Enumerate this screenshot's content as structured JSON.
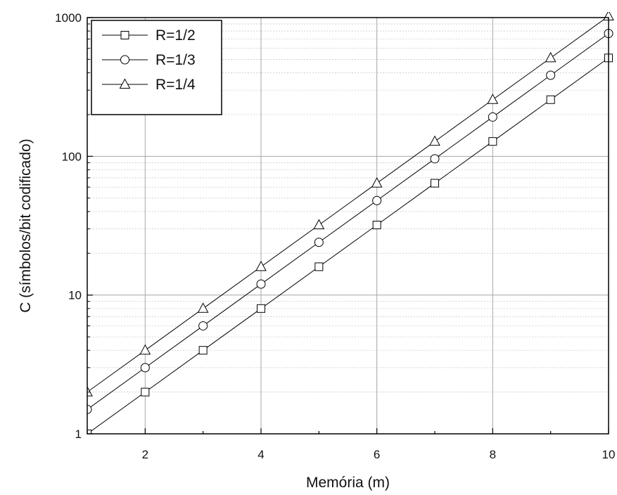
{
  "chart_data": {
    "type": "line",
    "title": "",
    "xlabel": "Memória (m)",
    "ylabel": "C (símbolos/bit codificado)",
    "xlim": [
      1,
      10
    ],
    "ylim": [
      1,
      1000
    ],
    "yscale": "log",
    "x_ticks": [
      2,
      4,
      6,
      8,
      10
    ],
    "x_tick_labels": [
      "2",
      "4",
      "6",
      "8",
      "10"
    ],
    "y_ticks": [
      1,
      10,
      100,
      1000
    ],
    "y_tick_labels": [
      "1",
      "10",
      "100",
      "1000"
    ],
    "grid": true,
    "legend_position": "top-left",
    "line_color": "#000000",
    "x": [
      1,
      2,
      3,
      4,
      5,
      6,
      7,
      8,
      9,
      10
    ],
    "series": [
      {
        "name": "R=1/2",
        "marker": "square",
        "values": [
          1,
          2,
          4,
          8,
          16,
          32,
          64,
          128,
          256,
          512
        ]
      },
      {
        "name": "R=1/3",
        "marker": "circle",
        "values": [
          1.5,
          3,
          6,
          12,
          24,
          48,
          96,
          192,
          384,
          768
        ]
      },
      {
        "name": "R=1/4",
        "marker": "triangle",
        "values": [
          2,
          4,
          8,
          16,
          32,
          64,
          128,
          256,
          512,
          1024
        ]
      }
    ]
  }
}
